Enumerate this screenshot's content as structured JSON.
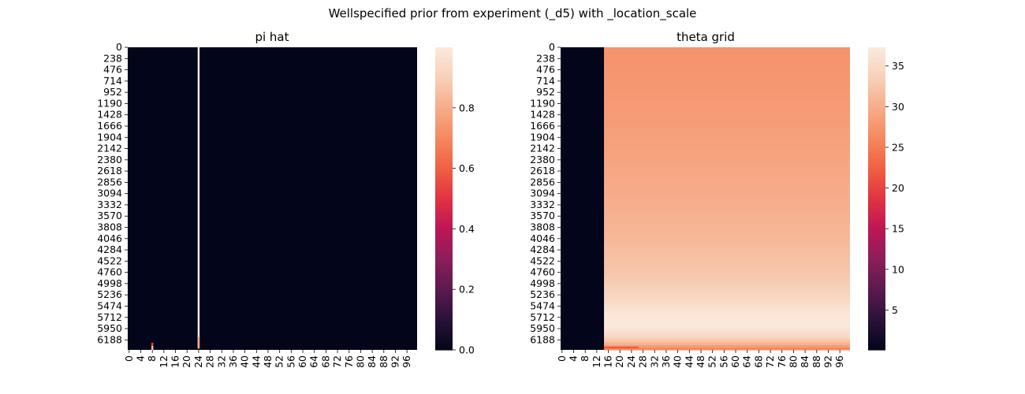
{
  "figure": {
    "suptitle": "Wellspecified prior from experiment (_d5) with _location_scale"
  },
  "chart_data": [
    {
      "type": "heatmap",
      "title": "pi hat",
      "yticklabels": [
        "0",
        "238",
        "476",
        "714",
        "952",
        "1190",
        "1428",
        "1666",
        "1904",
        "2142",
        "2380",
        "2618",
        "2856",
        "3094",
        "3332",
        "3570",
        "3808",
        "4046",
        "4284",
        "4522",
        "4760",
        "4998",
        "5236",
        "5474",
        "5712",
        "5950",
        "6188"
      ],
      "xticklabels": [
        "0",
        "4",
        "8",
        "12",
        "16",
        "20",
        "24",
        "28",
        "32",
        "36",
        "40",
        "44",
        "48",
        "52",
        "56",
        "60",
        "64",
        "68",
        "72",
        "76",
        "80",
        "84",
        "88",
        "92",
        "96"
      ],
      "n_rows": 6400,
      "n_cols": 100,
      "colorbar": {
        "range": [
          0,
          1
        ],
        "ticks": [
          "0.0",
          "0.2",
          "0.4",
          "0.6",
          "0.8"
        ]
      },
      "colormap": "rocket",
      "background_value": 0,
      "features": [
        {
          "col_start": 24,
          "col_end": 25,
          "row_start": 0,
          "row_end": 6370,
          "value": 1.0
        },
        {
          "col_start": 24,
          "col_end": 25,
          "row_start": 6130,
          "row_end": 6370,
          "value": 0.8
        },
        {
          "col_start": 8,
          "col_end": 9,
          "row_start": 6250,
          "row_end": 6400,
          "value": 0.55
        },
        {
          "col_start": 8,
          "col_end": 9,
          "row_start": 6320,
          "row_end": 6400,
          "value": 0.85
        }
      ]
    },
    {
      "type": "heatmap",
      "title": "theta grid",
      "yticklabels": [
        "0",
        "238",
        "476",
        "714",
        "952",
        "1190",
        "1428",
        "1666",
        "1904",
        "2142",
        "2380",
        "2618",
        "2856",
        "3094",
        "3332",
        "3570",
        "3808",
        "4046",
        "4284",
        "4522",
        "4760",
        "4998",
        "5236",
        "5474",
        "5712",
        "5950",
        "6188"
      ],
      "xticklabels": [
        "0",
        "4",
        "8",
        "12",
        "16",
        "20",
        "24",
        "28",
        "32",
        "36",
        "40",
        "44",
        "48",
        "52",
        "56",
        "60",
        "64",
        "68",
        "72",
        "76",
        "80",
        "84",
        "88",
        "92",
        "96"
      ],
      "n_rows": 6400,
      "n_cols": 100,
      "colorbar": {
        "range": [
          0.1,
          37.3
        ],
        "ticks": [
          "5",
          "10",
          "15",
          "20",
          "25",
          "30",
          "35"
        ]
      },
      "colormap": "rocket",
      "dark_columns": {
        "col_start": 0,
        "col_end": 15,
        "value": 0.1
      },
      "row_profile": [
        {
          "row": 0,
          "value": 27.2
        },
        {
          "row": 1000,
          "value": 27.8
        },
        {
          "row": 2000,
          "value": 28.6
        },
        {
          "row": 3000,
          "value": 29.6
        },
        {
          "row": 4000,
          "value": 31.0
        },
        {
          "row": 4800,
          "value": 32.6
        },
        {
          "row": 5300,
          "value": 34.5
        },
        {
          "row": 5600,
          "value": 36.5
        },
        {
          "row": 5900,
          "value": 37.2
        },
        {
          "row": 6100,
          "value": 35.0
        },
        {
          "row": 6250,
          "value": 31.5
        },
        {
          "row": 6350,
          "value": 27.0
        },
        {
          "row": 6400,
          "value": 25.5
        }
      ],
      "bottom_band": {
        "col_start": 15,
        "col_end": 27,
        "row_start": 6330,
        "row_end": 6370,
        "value": 22.0
      }
    }
  ]
}
